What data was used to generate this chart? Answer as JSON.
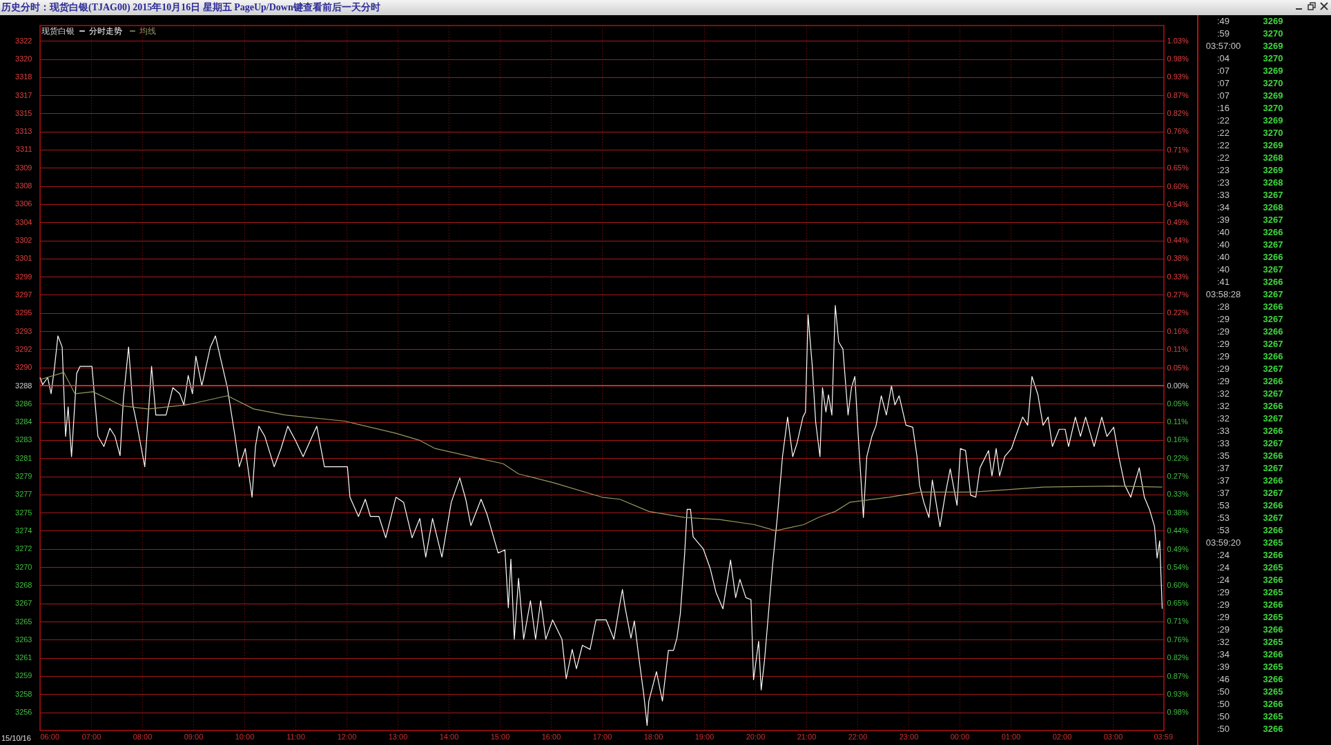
{
  "chart_data": {
    "type": "line",
    "title": "历史分时：现货白银(TJAG00) 2015年10月16日 星期五 PageUp/Down键查看前后一天分时",
    "legend_title": "现货白银",
    "legend": "top left",
    "grid": true,
    "marker": "none",
    "line_style": "solid",
    "xlim": [
      "2015-10-16T06:00",
      "2015-10-17T04:00"
    ],
    "xticks": [
      {
        "value": "2015-10-16T06:00",
        "label": "06:00"
      },
      {
        "value": "2015-10-16T07:00",
        "label": "07:00"
      },
      {
        "value": "2015-10-16T08:00",
        "label": "08:00"
      },
      {
        "value": "2015-10-16T09:00",
        "label": "09:00"
      },
      {
        "value": "2015-10-16T10:00",
        "label": "10:00"
      },
      {
        "value": "2015-10-16T11:00",
        "label": "11:00"
      },
      {
        "value": "2015-10-16T12:00",
        "label": "12:00"
      },
      {
        "value": "2015-10-16T13:00",
        "label": "13:00"
      },
      {
        "value": "2015-10-16T14:00",
        "label": "14:00"
      },
      {
        "value": "2015-10-16T15:00",
        "label": "15:00"
      },
      {
        "value": "2015-10-16T16:00",
        "label": "16:00"
      },
      {
        "value": "2015-10-16T17:00",
        "label": "17:00"
      },
      {
        "value": "2015-10-16T18:00",
        "label": "18:00"
      },
      {
        "value": "2015-10-16T19:00",
        "label": "19:00"
      },
      {
        "value": "2015-10-16T20:00",
        "label": "20:00"
      },
      {
        "value": "2015-10-16T21:00",
        "label": "21:00"
      },
      {
        "value": "2015-10-16T22:00",
        "label": "22:00"
      },
      {
        "value": "2015-10-16T23:00",
        "label": "23:00"
      },
      {
        "value": "2015-10-17T00:00",
        "label": "00:00"
      },
      {
        "value": "2015-10-17T01:00",
        "label": "01:00"
      },
      {
        "value": "2015-10-17T02:00",
        "label": "02:00"
      },
      {
        "value": "2015-10-17T03:00",
        "label": "03:00"
      },
      {
        "value": "2015-10-17T03:59",
        "label": "03:59"
      }
    ],
    "ref_lines": [
      {
        "axis": "y",
        "value": 3288,
        "color": "#ff3030"
      }
    ],
    "ylim": [
      3254,
      3323.5
    ],
    "yticks": [
      {
        "value": 3255.8,
        "label": "3256"
      },
      {
        "value": 3257.59,
        "label": "3258"
      },
      {
        "value": 3259.38,
        "label": "3259"
      },
      {
        "value": 3261.16,
        "label": "3261"
      },
      {
        "value": 3262.95,
        "label": "3263"
      },
      {
        "value": 3264.74,
        "label": "3265"
      },
      {
        "value": 3266.53,
        "label": "3267"
      },
      {
        "value": 3268.32,
        "label": "3268"
      },
      {
        "value": 3270.11,
        "label": "3270"
      },
      {
        "value": 3271.9,
        "label": "3272"
      },
      {
        "value": 3273.69,
        "label": "3274"
      },
      {
        "value": 3275.48,
        "label": "3275"
      },
      {
        "value": 3277.27,
        "label": "3277"
      },
      {
        "value": 3279.05,
        "label": "3279"
      },
      {
        "value": 3280.84,
        "label": "3281"
      },
      {
        "value": 3282.63,
        "label": "3283"
      },
      {
        "value": 3284.42,
        "label": "3284"
      },
      {
        "value": 3286.21,
        "label": "3286"
      },
      3288,
      {
        "value": 3289.79,
        "label": "3290"
      },
      {
        "value": 3291.58,
        "label": "3292"
      },
      {
        "value": 3293.37,
        "label": "3293"
      },
      {
        "value": 3295.16,
        "label": "3295"
      },
      {
        "value": 3296.95,
        "label": "3297"
      },
      {
        "value": 3298.73,
        "label": "3299"
      },
      {
        "value": 3300.52,
        "label": "3301"
      },
      {
        "value": 3302.31,
        "label": "3302"
      },
      {
        "value": 3304.1,
        "label": "3304"
      },
      {
        "value": 3305.89,
        "label": "3306"
      },
      {
        "value": 3307.68,
        "label": "3308"
      },
      {
        "value": 3309.47,
        "label": "3309"
      },
      {
        "value": 3311.26,
        "label": "3311"
      },
      {
        "value": 3313.05,
        "label": "3313"
      },
      {
        "value": 3314.84,
        "label": "3315"
      },
      {
        "value": 3316.62,
        "label": "3317"
      },
      {
        "value": 3318.41,
        "label": "3318"
      },
      {
        "value": 3320.2,
        "label": "3320"
      },
      {
        "value": 3321.99,
        "label": "3322"
      }
    ],
    "y2lim": [
      -1.034,
      1.08
    ],
    "y2ticks": [
      {
        "value": -0.979,
        "label": "0.98%"
      },
      {
        "value": -0.925,
        "label": "0.93%"
      },
      {
        "value": -0.871,
        "label": "0.87%"
      },
      {
        "value": -0.816,
        "label": "0.82%"
      },
      {
        "value": -0.762,
        "label": "0.76%"
      },
      {
        "value": -0.707,
        "label": "0.71%"
      },
      {
        "value": -0.653,
        "label": "0.65%"
      },
      {
        "value": -0.598,
        "label": "0.60%"
      },
      {
        "value": -0.544,
        "label": "0.54%"
      },
      {
        "value": -0.49,
        "label": "0.49%"
      },
      {
        "value": -0.435,
        "label": "0.44%"
      },
      {
        "value": -0.381,
        "label": "0.38%"
      },
      {
        "value": -0.326,
        "label": "0.33%"
      },
      {
        "value": -0.272,
        "label": "0.27%"
      },
      {
        "value": -0.218,
        "label": "0.22%"
      },
      {
        "value": -0.163,
        "label": "0.16%"
      },
      {
        "value": -0.109,
        "label": "0.11%"
      },
      {
        "value": -0.054,
        "label": "0.05%"
      },
      {
        "value": 0,
        "label": "0.00%"
      },
      {
        "value": 0.054,
        "label": "0.05%"
      },
      {
        "value": 0.109,
        "label": "0.11%"
      },
      {
        "value": 0.163,
        "label": "0.16%"
      },
      {
        "value": 0.218,
        "label": "0.22%"
      },
      {
        "value": 0.272,
        "label": "0.27%"
      },
      {
        "value": 0.326,
        "label": "0.33%"
      },
      {
        "value": 0.381,
        "label": "0.38%"
      },
      {
        "value": 0.435,
        "label": "0.44%"
      },
      {
        "value": 0.49,
        "label": "0.49%"
      },
      {
        "value": 0.544,
        "label": "0.54%"
      },
      {
        "value": 0.598,
        "label": "0.60%"
      },
      {
        "value": 0.653,
        "label": "0.65%"
      },
      {
        "value": 0.707,
        "label": "0.71%"
      },
      {
        "value": 0.762,
        "label": "0.76%"
      },
      {
        "value": 0.816,
        "label": "0.82%"
      },
      {
        "value": 0.871,
        "label": "0.87%"
      },
      {
        "value": 0.925,
        "label": "0.93%"
      },
      {
        "value": 0.979,
        "label": "0.98%"
      },
      {
        "value": 1.034,
        "label": "1.03%"
      }
    ],
    "series": [
      {
        "name": "分时走势",
        "color": "#ffffff",
        "x": [
          "2015-10-16T06:00",
          "2015-10-16T06:03",
          "2015-10-16T06:09",
          "2015-10-16T06:13",
          "2015-10-16T06:17",
          "2015-10-16T06:21",
          "2015-10-16T06:26",
          "2015-10-16T06:30",
          "2015-10-16T06:33",
          "2015-10-16T06:37",
          "2015-10-16T06:43",
          "2015-10-16T06:47",
          "2015-10-16T07:01",
          "2015-10-16T07:08",
          "2015-10-16T07:15",
          "2015-10-16T07:22",
          "2015-10-16T07:28",
          "2015-10-16T07:34",
          "2015-10-16T07:38",
          "2015-10-16T07:44",
          "2015-10-16T07:49",
          "2015-10-16T07:53",
          "2015-10-16T08:03",
          "2015-10-16T08:11",
          "2015-10-16T08:16",
          "2015-10-16T08:28",
          "2015-10-16T08:36",
          "2015-10-16T08:44",
          "2015-10-16T08:49",
          "2015-10-16T08:54",
          "2015-10-16T08:59",
          "2015-10-16T09:03",
          "2015-10-16T09:10",
          "2015-10-16T09:20",
          "2015-10-16T09:26",
          "2015-10-16T09:32",
          "2015-10-16T09:40",
          "2015-10-16T09:49",
          "2015-10-16T09:54",
          "2015-10-16T10:01",
          "2015-10-16T10:09",
          "2015-10-16T10:13",
          "2015-10-16T10:17",
          "2015-10-16T10:24",
          "2015-10-16T10:35",
          "2015-10-16T10:43",
          "2015-10-16T10:51",
          "2015-10-16T11:00",
          "2015-10-16T11:09",
          "2015-10-16T11:25",
          "2015-10-16T11:34",
          "2015-10-16T12:01",
          "2015-10-16T12:04",
          "2015-10-16T12:14",
          "2015-10-16T12:22",
          "2015-10-16T12:28",
          "2015-10-16T12:38",
          "2015-10-16T12:46",
          "2015-10-16T12:58",
          "2015-10-16T13:07",
          "2015-10-16T13:17",
          "2015-10-16T13:26",
          "2015-10-16T13:33",
          "2015-10-16T13:41",
          "2015-10-16T13:52",
          "2015-10-16T14:03",
          "2015-10-16T14:13",
          "2015-10-16T14:20",
          "2015-10-16T14:26",
          "2015-10-16T14:38",
          "2015-10-16T14:45",
          "2015-10-16T14:58",
          "2015-10-16T15:06",
          "2015-10-16T15:10",
          "2015-10-16T15:13",
          "2015-10-16T15:17",
          "2015-10-16T15:22",
          "2015-10-16T15:28",
          "2015-10-16T15:36",
          "2015-10-16T15:42",
          "2015-10-16T15:48",
          "2015-10-16T15:54",
          "2015-10-16T16:02",
          "2015-10-16T16:13",
          "2015-10-16T16:18",
          "2015-10-16T16:25",
          "2015-10-16T16:30",
          "2015-10-16T16:37",
          "2015-10-16T16:46",
          "2015-10-16T16:53",
          "2015-10-16T17:05",
          "2015-10-16T17:14",
          "2015-10-16T17:21",
          "2015-10-16T17:24",
          "2015-10-16T17:27",
          "2015-10-16T17:34",
          "2015-10-16T17:38",
          "2015-10-16T17:43",
          "2015-10-16T17:49",
          "2015-10-16T17:53",
          "2015-10-16T17:55",
          "2015-10-16T18:04",
          "2015-10-16T18:11",
          "2015-10-16T18:18",
          "2015-10-16T18:24",
          "2015-10-16T18:28",
          "2015-10-16T18:32",
          "2015-10-16T18:37",
          "2015-10-16T18:40",
          "2015-10-16T18:44",
          "2015-10-16T18:47",
          "2015-10-16T18:59",
          "2015-10-16T19:07",
          "2015-10-16T19:14",
          "2015-10-16T19:22",
          "2015-10-16T19:31",
          "2015-10-16T19:37",
          "2015-10-16T19:42",
          "2015-10-16T19:49",
          "2015-10-16T19:55",
          "2015-10-16T19:58",
          "2015-10-16T20:04",
          "2015-10-16T20:07",
          "2015-10-16T20:11",
          "2015-10-16T20:20",
          "2015-10-16T20:26",
          "2015-10-16T20:32",
          "2015-10-16T20:38",
          "2015-10-16T20:44",
          "2015-10-16T20:49",
          "2015-10-16T20:56",
          "2015-10-16T20:59",
          "2015-10-16T21:02",
          "2015-10-16T21:07",
          "2015-10-16T21:11",
          "2015-10-16T21:16",
          "2015-10-16T21:19",
          "2015-10-16T21:23",
          "2015-10-16T21:26",
          "2015-10-16T21:30",
          "2015-10-16T21:34",
          "2015-10-16T21:38",
          "2015-10-16T21:43",
          "2015-10-16T21:49",
          "2015-10-16T21:53",
          "2015-10-16T21:57",
          "2015-10-16T22:01",
          "2015-10-16T22:07",
          "2015-10-16T22:11",
          "2015-10-16T22:17",
          "2015-10-16T22:22",
          "2015-10-16T22:28",
          "2015-10-16T22:34",
          "2015-10-16T22:40",
          "2015-10-16T22:44",
          "2015-10-16T22:49",
          "2015-10-16T22:57",
          "2015-10-16T23:05",
          "2015-10-16T23:10",
          "2015-10-16T23:13",
          "2015-10-16T23:18",
          "2015-10-16T23:24",
          "2015-10-16T23:28",
          "2015-10-16T23:37",
          "2015-10-16T23:43",
          "2015-10-16T23:49",
          "2015-10-16T23:57",
          "2015-10-17T00:01",
          "2015-10-17T00:07",
          "2015-10-17T00:13",
          "2015-10-17T00:19",
          "2015-10-17T00:24",
          "2015-10-17T00:34",
          "2015-10-17T00:38",
          "2015-10-17T00:43",
          "2015-10-17T00:47",
          "2015-10-17T00:53",
          "2015-10-17T01:01",
          "2015-10-17T01:05",
          "2015-10-17T01:14",
          "2015-10-17T01:20",
          "2015-10-17T01:25",
          "2015-10-17T01:32",
          "2015-10-17T01:38",
          "2015-10-17T01:44",
          "2015-10-17T01:49",
          "2015-10-17T01:57",
          "2015-10-17T02:04",
          "2015-10-17T02:08",
          "2015-10-17T02:16",
          "2015-10-17T02:22",
          "2015-10-17T02:28",
          "2015-10-17T02:38",
          "2015-10-17T02:47",
          "2015-10-17T02:53",
          "2015-10-17T03:01",
          "2015-10-17T03:07",
          "2015-10-17T03:14",
          "2015-10-17T03:21",
          "2015-10-17T03:31",
          "2015-10-17T03:37",
          "2015-10-17T03:43",
          "2015-10-17T03:49",
          "2015-10-17T03:52",
          "2015-10-17T03:55",
          "2015-10-17T03:58"
        ],
        "values": [
          3288.8,
          3288.1,
          3288.8,
          3287.2,
          3289.8,
          3292.9,
          3291.8,
          3283.0,
          3285.9,
          3281.0,
          3289.2,
          3289.9,
          3289.9,
          3283.0,
          3282.0,
          3283.8,
          3283.0,
          3281.1,
          3286.8,
          3291.8,
          3286.1,
          3284.5,
          3280.0,
          3289.9,
          3285.1,
          3285.1,
          3287.8,
          3287.2,
          3286.1,
          3289.0,
          3287.2,
          3290.9,
          3288.0,
          3291.8,
          3292.9,
          3290.7,
          3287.8,
          3283.0,
          3280.0,
          3281.8,
          3277.0,
          3282.0,
          3284.0,
          3283.0,
          3280.0,
          3281.8,
          3284.0,
          3282.6,
          3281.0,
          3284.0,
          3280.0,
          3280.0,
          3277.0,
          3275.1,
          3276.8,
          3275.1,
          3275.1,
          3273.0,
          3277.0,
          3276.5,
          3273.0,
          3274.9,
          3271.1,
          3274.9,
          3271.1,
          3276.5,
          3278.9,
          3276.8,
          3274.2,
          3276.8,
          3275.3,
          3271.5,
          3271.8,
          3266.1,
          3270.9,
          3263.0,
          3269.0,
          3263.0,
          3266.8,
          3263.0,
          3266.8,
          3263.0,
          3264.9,
          3263.0,
          3259.1,
          3262.0,
          3260.1,
          3262.4,
          3262.0,
          3264.9,
          3264.9,
          3263.0,
          3266.5,
          3267.9,
          3266.2,
          3263.1,
          3264.8,
          3261.4,
          3257.6,
          3254.5,
          3256.9,
          3259.8,
          3256.9,
          3261.9,
          3261.9,
          3263.1,
          3265.5,
          3271.3,
          3275.8,
          3275.8,
          3273.1,
          3271.9,
          3270.0,
          3267.6,
          3266.0,
          3270.8,
          3267.1,
          3268.9,
          3267.1,
          3266.9,
          3259.0,
          3262.8,
          3258.0,
          3261.0,
          3270.0,
          3275.1,
          3281.0,
          3284.9,
          3281.0,
          3282.3,
          3284.9,
          3285.4,
          3295.0,
          3289.9,
          3284.4,
          3281.0,
          3287.8,
          3285.4,
          3287.1,
          3285.1,
          3295.9,
          3292.3,
          3291.6,
          3285.1,
          3287.8,
          3288.9,
          3283.0,
          3275.0,
          3281.0,
          3283.0,
          3284.1,
          3287.0,
          3285.1,
          3288.0,
          3286.1,
          3287.0,
          3284.1,
          3283.9,
          3281.0,
          3278.2,
          3276.5,
          3275.0,
          3278.7,
          3274.1,
          3277.2,
          3279.8,
          3276.2,
          3281.8,
          3281.6,
          3277.2,
          3277.0,
          3279.9,
          3281.6,
          3279.1,
          3281.8,
          3279.1,
          3281.0,
          3281.8,
          3282.8,
          3284.9,
          3284.1,
          3288.9,
          3287.1,
          3284.1,
          3284.9,
          3282.0,
          3283.7,
          3283.7,
          3282.0,
          3284.9,
          3283.0,
          3284.9,
          3282.0,
          3284.9,
          3283.0,
          3283.9,
          3281.0,
          3278.2,
          3277.0,
          3279.9,
          3277.0,
          3275.8,
          3274.1,
          3271.0,
          3272.7,
          3266.0
        ]
      },
      {
        "name": "均线",
        "color": "#9a9a62",
        "x": [
          "2015-10-16T06:00",
          "2015-10-16T06:28",
          "2015-10-16T06:41",
          "2015-10-16T07:02",
          "2015-10-16T07:37",
          "2015-10-16T08:07",
          "2015-10-16T08:52",
          "2015-10-16T09:40",
          "2015-10-16T10:11",
          "2015-10-16T10:48",
          "2015-10-16T11:58",
          "2015-10-16T12:58",
          "2015-10-16T13:26",
          "2015-10-16T13:44",
          "2015-10-16T14:31",
          "2015-10-16T15:04",
          "2015-10-16T15:22",
          "2015-10-16T16:04",
          "2015-10-16T17:00",
          "2015-10-16T17:21",
          "2015-10-16T17:55",
          "2015-10-16T18:37",
          "2015-10-16T19:18",
          "2015-10-16T19:59",
          "2015-10-16T20:24",
          "2015-10-16T20:57",
          "2015-10-16T21:14",
          "2015-10-16T21:34",
          "2015-10-16T21:51",
          "2015-10-16T22:37",
          "2015-10-16T23:14",
          "2015-10-17T00:16",
          "2015-10-17T01:38",
          "2015-10-17T03:01",
          "2015-10-17T03:58"
        ],
        "values": [
          3288.6,
          3289.3,
          3287.2,
          3287.4,
          3286.0,
          3285.7,
          3286.1,
          3287.0,
          3285.7,
          3285.1,
          3284.5,
          3283.3,
          3282.6,
          3281.8,
          3280.9,
          3280.3,
          3279.3,
          3278.4,
          3277.0,
          3276.8,
          3275.6,
          3275.0,
          3274.8,
          3274.3,
          3273.7,
          3274.3,
          3275.0,
          3275.6,
          3276.5,
          3277.0,
          3277.5,
          3277.5,
          3278.0,
          3278.1,
          3278.0
        ]
      }
    ],
    "annotations": [
      "15/10/16",
      ":49",
      "3269",
      ":59",
      "3270",
      "03:57:00",
      "3269",
      ":04",
      "3270",
      ":07",
      "3269",
      ":07",
      "3270",
      ":07",
      "3269",
      ":16",
      "3270",
      ":22",
      "3269",
      ":22",
      "3270",
      ":22",
      "3269",
      ":22",
      "3268",
      ":23",
      "3269",
      ":23",
      "3268",
      ":33",
      "3267",
      ":34",
      "3268",
      ":39",
      "3267",
      ":40",
      "3266",
      ":40",
      "3267",
      ":40",
      "3266",
      ":40",
      "3267",
      ":41",
      "3266",
      "03:58:28",
      "3267",
      ":28",
      "3266",
      ":29",
      "3267",
      ":29",
      "3266",
      ":29",
      "3267",
      ":29",
      "3266",
      ":29",
      "3267",
      ":29",
      "3266",
      ":32",
      "3267",
      ":32",
      "3266",
      ":32",
      "3267",
      ":33",
      "3266",
      ":33",
      "3267",
      ":35",
      "3266",
      ":37",
      "3267",
      ":37",
      "3266",
      ":37",
      "3267",
      ":53",
      "3266",
      ":53",
      "3267",
      ":53",
      "3266",
      "03:59:20",
      "3265",
      ":24",
      "3266",
      ":24",
      "3265",
      ":24",
      "3266",
      ":29",
      "3265",
      ":29",
      "3266",
      ":29",
      "3265",
      ":29",
      "3266",
      ":32",
      "3265",
      ":34",
      "3266",
      ":39",
      "3265",
      ":46",
      "3266",
      ":50",
      "3265",
      ":50",
      "3266",
      ":50",
      "3265",
      ":50",
      "3266"
    ]
  }
}
